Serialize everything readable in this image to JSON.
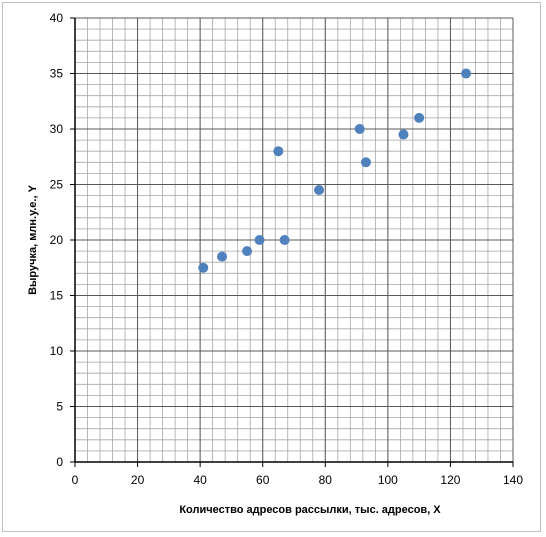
{
  "chart_data": {
    "type": "scatter",
    "title": "",
    "xlabel": "Количество адресов рассылки,  тыс. адресов, X",
    "ylabel": "Выручка,  млн.у.е., Y",
    "xlim": [
      0,
      140
    ],
    "ylim": [
      0,
      40
    ],
    "x_ticks": [
      0,
      20,
      40,
      60,
      80,
      100,
      120,
      140
    ],
    "y_ticks": [
      0,
      5,
      10,
      15,
      20,
      25,
      30,
      35,
      40
    ],
    "grid": true,
    "minor_grid": true,
    "legend": "none",
    "marker_color": "#4f81bd",
    "points": [
      {
        "x": 41,
        "y": 17.5
      },
      {
        "x": 47,
        "y": 18.5
      },
      {
        "x": 55,
        "y": 19
      },
      {
        "x": 59,
        "y": 20
      },
      {
        "x": 65,
        "y": 28
      },
      {
        "x": 67,
        "y": 20
      },
      {
        "x": 78,
        "y": 24.5
      },
      {
        "x": 91,
        "y": 30
      },
      {
        "x": 93,
        "y": 27
      },
      {
        "x": 105,
        "y": 29.5
      },
      {
        "x": 110,
        "y": 31
      },
      {
        "x": 125,
        "y": 35
      }
    ]
  }
}
